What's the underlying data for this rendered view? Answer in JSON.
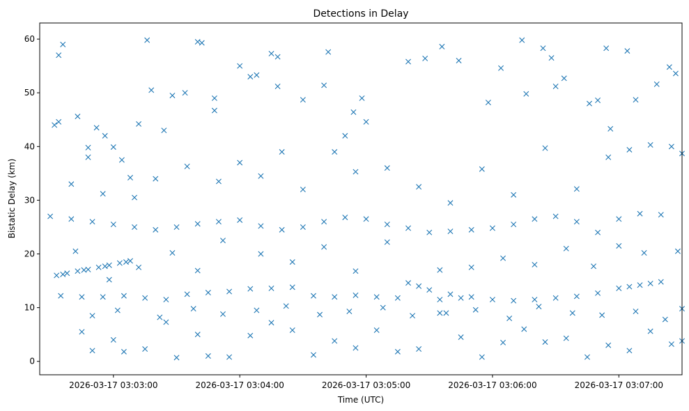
{
  "chart_data": {
    "type": "scatter",
    "title": "Detections in Delay",
    "xlabel": "Time (UTC)",
    "ylabel": "Bistatic Delay (km)",
    "x_ticks": [
      "2026-03-17 03:03:00",
      "2026-03-17 03:04:00",
      "2026-03-17 03:05:00",
      "2026-03-17 03:06:00",
      "2026-03-17 03:07:00"
    ],
    "x_range": [
      "2026-03-17 03:02:25",
      "2026-03-17 03:07:30"
    ],
    "y_ticks": [
      0,
      10,
      20,
      30,
      40,
      50,
      60
    ],
    "ylim": [
      -2.5,
      63
    ],
    "grid": false,
    "marker": "x",
    "color": "#1f77b4",
    "series": [
      {
        "points": [
          [
            "2026-03-17 03:02:33",
            16.0
          ],
          [
            "2026-03-17 03:02:38",
            16.4
          ],
          [
            "2026-03-17 03:02:43",
            16.8
          ],
          [
            "2026-03-17 03:02:48",
            17.1
          ],
          [
            "2026-03-17 03:02:53",
            17.5
          ],
          [
            "2026-03-17 03:02:58",
            17.9
          ],
          [
            "2026-03-17 03:03:03",
            18.3
          ],
          [
            "2026-03-17 03:03:08",
            18.7
          ],
          [
            "2026-03-17 03:02:36",
            16.2
          ],
          [
            "2026-03-17 03:02:46",
            17.0
          ],
          [
            "2026-03-17 03:02:56",
            17.7
          ],
          [
            "2026-03-17 03:03:06",
            18.5
          ],
          [
            "2026-03-17 03:07:00",
            13.6
          ],
          [
            "2026-03-17 03:07:05",
            13.9
          ],
          [
            "2026-03-17 03:07:10",
            14.2
          ],
          [
            "2026-03-17 03:07:15",
            14.5
          ],
          [
            "2026-03-17 03:07:20",
            14.8
          ],
          [
            "2026-03-17 03:06:40",
            12.1
          ],
          [
            "2026-03-17 03:06:50",
            12.7
          ],
          [
            "2026-03-17 03:06:30",
            11.8
          ],
          [
            "2026-03-17 03:06:20",
            11.5
          ],
          [
            "2026-03-17 03:06:10",
            11.3
          ],
          [
            "2026-03-17 03:06:00",
            11.5
          ],
          [
            "2026-03-17 03:05:50",
            12.0
          ],
          [
            "2026-03-17 03:05:40",
            12.5
          ],
          [
            "2026-03-17 03:05:30",
            13.3
          ],
          [
            "2026-03-17 03:05:25",
            14.0
          ],
          [
            "2026-03-17 03:05:20",
            14.6
          ],
          [
            "2026-03-17 03:02:30",
            27.0
          ],
          [
            "2026-03-17 03:02:40",
            26.5
          ],
          [
            "2026-03-17 03:02:50",
            26.0
          ],
          [
            "2026-03-17 03:03:00",
            25.5
          ],
          [
            "2026-03-17 03:03:10",
            25.0
          ],
          [
            "2026-03-17 03:03:20",
            24.5
          ],
          [
            "2026-03-17 03:03:30",
            25.0
          ],
          [
            "2026-03-17 03:03:40",
            25.6
          ],
          [
            "2026-03-17 03:03:50",
            26.0
          ],
          [
            "2026-03-17 03:04:00",
            26.3
          ],
          [
            "2026-03-17 03:04:10",
            25.2
          ],
          [
            "2026-03-17 03:04:20",
            24.5
          ],
          [
            "2026-03-17 03:04:30",
            25.0
          ],
          [
            "2026-03-17 03:04:40",
            26.0
          ],
          [
            "2026-03-17 03:04:50",
            26.8
          ],
          [
            "2026-03-17 03:05:00",
            26.5
          ],
          [
            "2026-03-17 03:05:10",
            25.5
          ],
          [
            "2026-03-17 03:05:20",
            24.8
          ],
          [
            "2026-03-17 03:05:30",
            24.0
          ],
          [
            "2026-03-17 03:05:40",
            24.2
          ],
          [
            "2026-03-17 03:05:50",
            24.5
          ],
          [
            "2026-03-17 03:06:00",
            24.8
          ],
          [
            "2026-03-17 03:06:10",
            25.5
          ],
          [
            "2026-03-17 03:06:20",
            26.5
          ],
          [
            "2026-03-17 03:06:30",
            27.0
          ],
          [
            "2026-03-17 03:06:40",
            26.0
          ],
          [
            "2026-03-17 03:06:50",
            24.0
          ],
          [
            "2026-03-17 03:07:00",
            26.5
          ],
          [
            "2026-03-17 03:07:10",
            27.5
          ],
          [
            "2026-03-17 03:07:20",
            27.3
          ],
          [
            "2026-03-17 03:02:35",
            12.2
          ],
          [
            "2026-03-17 03:02:45",
            12.0
          ],
          [
            "2026-03-17 03:02:55",
            12.0
          ],
          [
            "2026-03-17 03:03:05",
            12.2
          ],
          [
            "2026-03-17 03:03:15",
            11.8
          ],
          [
            "2026-03-17 03:03:25",
            11.5
          ],
          [
            "2026-03-17 03:03:35",
            12.5
          ],
          [
            "2026-03-17 03:03:45",
            12.8
          ],
          [
            "2026-03-17 03:03:55",
            13.0
          ],
          [
            "2026-03-17 03:04:05",
            13.5
          ],
          [
            "2026-03-17 03:04:15",
            13.6
          ],
          [
            "2026-03-17 03:04:25",
            13.8
          ],
          [
            "2026-03-17 03:04:35",
            12.2
          ],
          [
            "2026-03-17 03:04:45",
            12.0
          ],
          [
            "2026-03-17 03:04:55",
            12.3
          ],
          [
            "2026-03-17 03:05:05",
            12.0
          ],
          [
            "2026-03-17 03:05:15",
            11.8
          ],
          [
            "2026-03-17 03:05:35",
            11.5
          ],
          [
            "2026-03-17 03:05:45",
            11.8
          ],
          [
            "2026-03-17 03:02:32",
            44.0
          ],
          [
            "2026-03-17 03:02:34",
            57.0
          ],
          [
            "2026-03-17 03:02:36",
            59.0
          ],
          [
            "2026-03-17 03:02:34",
            44.6
          ],
          [
            "2026-03-17 03:02:43",
            45.6
          ],
          [
            "2026-03-17 03:02:48",
            38.0
          ],
          [
            "2026-03-17 03:02:48",
            39.8
          ],
          [
            "2026-03-17 03:02:52",
            43.5
          ],
          [
            "2026-03-17 03:02:56",
            42.0
          ],
          [
            "2026-03-17 03:03:00",
            39.9
          ],
          [
            "2026-03-17 03:03:04",
            37.5
          ],
          [
            "2026-03-17 03:03:08",
            34.2
          ],
          [
            "2026-03-17 03:03:12",
            44.2
          ],
          [
            "2026-03-17 03:03:16",
            59.8
          ],
          [
            "2026-03-17 03:03:18",
            50.5
          ],
          [
            "2026-03-17 03:03:24",
            43.0
          ],
          [
            "2026-03-17 03:03:28",
            49.5
          ],
          [
            "2026-03-17 03:03:34",
            50.0
          ],
          [
            "2026-03-17 03:03:40",
            59.5
          ],
          [
            "2026-03-17 03:03:42",
            59.3
          ],
          [
            "2026-03-17 03:03:48",
            49.0
          ],
          [
            "2026-03-17 03:03:48",
            46.7
          ],
          [
            "2026-03-17 03:04:00",
            55.0
          ],
          [
            "2026-03-17 03:04:05",
            53.0
          ],
          [
            "2026-03-17 03:04:08",
            53.3
          ],
          [
            "2026-03-17 03:04:15",
            57.3
          ],
          [
            "2026-03-17 03:04:18",
            56.7
          ],
          [
            "2026-03-17 03:04:18",
            51.2
          ],
          [
            "2026-03-17 03:04:30",
            48.7
          ],
          [
            "2026-03-17 03:04:40",
            51.4
          ],
          [
            "2026-03-17 03:04:42",
            57.6
          ],
          [
            "2026-03-17 03:04:50",
            42.0
          ],
          [
            "2026-03-17 03:04:54",
            46.4
          ],
          [
            "2026-03-17 03:04:58",
            49.0
          ],
          [
            "2026-03-17 03:05:00",
            44.6
          ],
          [
            "2026-03-17 03:05:20",
            55.8
          ],
          [
            "2026-03-17 03:05:28",
            56.4
          ],
          [
            "2026-03-17 03:05:36",
            58.6
          ],
          [
            "2026-03-17 03:05:44",
            56.0
          ],
          [
            "2026-03-17 03:05:58",
            48.2
          ],
          [
            "2026-03-17 03:06:04",
            54.6
          ],
          [
            "2026-03-17 03:06:14",
            59.8
          ],
          [
            "2026-03-17 03:06:16",
            49.8
          ],
          [
            "2026-03-17 03:06:24",
            58.3
          ],
          [
            "2026-03-17 03:06:28",
            56.5
          ],
          [
            "2026-03-17 03:06:30",
            51.2
          ],
          [
            "2026-03-17 03:06:34",
            52.7
          ],
          [
            "2026-03-17 03:06:46",
            48.0
          ],
          [
            "2026-03-17 03:06:50",
            48.6
          ],
          [
            "2026-03-17 03:06:54",
            58.3
          ],
          [
            "2026-03-17 03:06:56",
            43.3
          ],
          [
            "2026-03-17 03:07:04",
            57.8
          ],
          [
            "2026-03-17 03:07:08",
            48.7
          ],
          [
            "2026-03-17 03:07:18",
            51.6
          ],
          [
            "2026-03-17 03:07:24",
            54.8
          ],
          [
            "2026-03-17 03:07:27",
            53.6
          ],
          [
            "2026-03-17 03:02:45",
            5.5
          ],
          [
            "2026-03-17 03:02:50",
            2.0
          ],
          [
            "2026-03-17 03:03:00",
            4.0
          ],
          [
            "2026-03-17 03:03:05",
            1.8
          ],
          [
            "2026-03-17 03:03:15",
            2.3
          ],
          [
            "2026-03-17 03:03:25",
            7.3
          ],
          [
            "2026-03-17 03:03:30",
            0.7
          ],
          [
            "2026-03-17 03:03:40",
            5.0
          ],
          [
            "2026-03-17 03:03:45",
            1.0
          ],
          [
            "2026-03-17 03:03:55",
            0.8
          ],
          [
            "2026-03-17 03:04:05",
            4.8
          ],
          [
            "2026-03-17 03:04:15",
            7.2
          ],
          [
            "2026-03-17 03:04:25",
            5.8
          ],
          [
            "2026-03-17 03:04:35",
            1.2
          ],
          [
            "2026-03-17 03:04:45",
            3.8
          ],
          [
            "2026-03-17 03:04:55",
            2.5
          ],
          [
            "2026-03-17 03:05:05",
            5.8
          ],
          [
            "2026-03-17 03:05:15",
            1.8
          ],
          [
            "2026-03-17 03:05:25",
            2.3
          ],
          [
            "2026-03-17 03:05:35",
            9.0
          ],
          [
            "2026-03-17 03:05:45",
            4.5
          ],
          [
            "2026-03-17 03:05:55",
            0.8
          ],
          [
            "2026-03-17 03:06:05",
            3.5
          ],
          [
            "2026-03-17 03:06:15",
            6.0
          ],
          [
            "2026-03-17 03:06:25",
            3.6
          ],
          [
            "2026-03-17 03:06:35",
            4.3
          ],
          [
            "2026-03-17 03:06:45",
            0.8
          ],
          [
            "2026-03-17 03:06:55",
            3.0
          ],
          [
            "2026-03-17 03:07:05",
            2.0
          ],
          [
            "2026-03-17 03:07:15",
            5.6
          ],
          [
            "2026-03-17 03:07:25",
            3.2
          ],
          [
            "2026-03-17 03:07:30",
            3.8
          ],
          [
            "2026-03-17 03:02:40",
            33.0
          ],
          [
            "2026-03-17 03:02:55",
            31.2
          ],
          [
            "2026-03-17 03:03:10",
            30.5
          ],
          [
            "2026-03-17 03:03:20",
            34.0
          ],
          [
            "2026-03-17 03:03:35",
            36.3
          ],
          [
            "2026-03-17 03:03:50",
            33.5
          ],
          [
            "2026-03-17 03:04:00",
            37.0
          ],
          [
            "2026-03-17 03:04:10",
            34.5
          ],
          [
            "2026-03-17 03:04:20",
            39.0
          ],
          [
            "2026-03-17 03:04:30",
            32.0
          ],
          [
            "2026-03-17 03:04:45",
            39.0
          ],
          [
            "2026-03-17 03:04:55",
            35.3
          ],
          [
            "2026-03-17 03:05:10",
            36.0
          ],
          [
            "2026-03-17 03:05:25",
            32.5
          ],
          [
            "2026-03-17 03:05:40",
            29.5
          ],
          [
            "2026-03-17 03:05:55",
            35.8
          ],
          [
            "2026-03-17 03:06:10",
            31.0
          ],
          [
            "2026-03-17 03:06:25",
            39.7
          ],
          [
            "2026-03-17 03:06:40",
            32.1
          ],
          [
            "2026-03-17 03:06:55",
            38.0
          ],
          [
            "2026-03-17 03:07:05",
            39.4
          ],
          [
            "2026-03-17 03:07:15",
            40.3
          ],
          [
            "2026-03-17 03:07:25",
            40.0
          ],
          [
            "2026-03-17 03:07:30",
            38.7
          ],
          [
            "2026-03-17 03:02:42",
            20.5
          ],
          [
            "2026-03-17 03:02:58",
            15.2
          ],
          [
            "2026-03-17 03:03:12",
            17.5
          ],
          [
            "2026-03-17 03:03:28",
            20.2
          ],
          [
            "2026-03-17 03:03:40",
            16.9
          ],
          [
            "2026-03-17 03:03:52",
            22.5
          ],
          [
            "2026-03-17 03:04:10",
            20.0
          ],
          [
            "2026-03-17 03:04:25",
            18.5
          ],
          [
            "2026-03-17 03:04:40",
            21.3
          ],
          [
            "2026-03-17 03:04:55",
            16.8
          ],
          [
            "2026-03-17 03:05:10",
            22.2
          ],
          [
            "2026-03-17 03:05:35",
            17.0
          ],
          [
            "2026-03-17 03:05:50",
            17.5
          ],
          [
            "2026-03-17 03:06:05",
            19.2
          ],
          [
            "2026-03-17 03:06:20",
            18.0
          ],
          [
            "2026-03-17 03:06:35",
            21.0
          ],
          [
            "2026-03-17 03:06:48",
            17.7
          ],
          [
            "2026-03-17 03:07:00",
            21.5
          ],
          [
            "2026-03-17 03:07:12",
            20.2
          ],
          [
            "2026-03-17 03:07:28",
            20.5
          ],
          [
            "2026-03-17 03:02:50",
            8.5
          ],
          [
            "2026-03-17 03:03:02",
            9.5
          ],
          [
            "2026-03-17 03:03:22",
            8.2
          ],
          [
            "2026-03-17 03:03:38",
            9.8
          ],
          [
            "2026-03-17 03:03:52",
            8.8
          ],
          [
            "2026-03-17 03:04:08",
            9.5
          ],
          [
            "2026-03-17 03:04:22",
            10.3
          ],
          [
            "2026-03-17 03:04:38",
            8.7
          ],
          [
            "2026-03-17 03:04:52",
            9.3
          ],
          [
            "2026-03-17 03:05:08",
            10.0
          ],
          [
            "2026-03-17 03:05:22",
            8.5
          ],
          [
            "2026-03-17 03:05:38",
            9.0
          ],
          [
            "2026-03-17 03:05:52",
            9.6
          ],
          [
            "2026-03-17 03:06:08",
            8.0
          ],
          [
            "2026-03-17 03:06:22",
            10.2
          ],
          [
            "2026-03-17 03:06:38",
            9.0
          ],
          [
            "2026-03-17 03:06:52",
            8.6
          ],
          [
            "2026-03-17 03:07:08",
            9.3
          ],
          [
            "2026-03-17 03:07:22",
            7.8
          ],
          [
            "2026-03-17 03:07:30",
            9.8
          ]
        ]
      }
    ]
  }
}
